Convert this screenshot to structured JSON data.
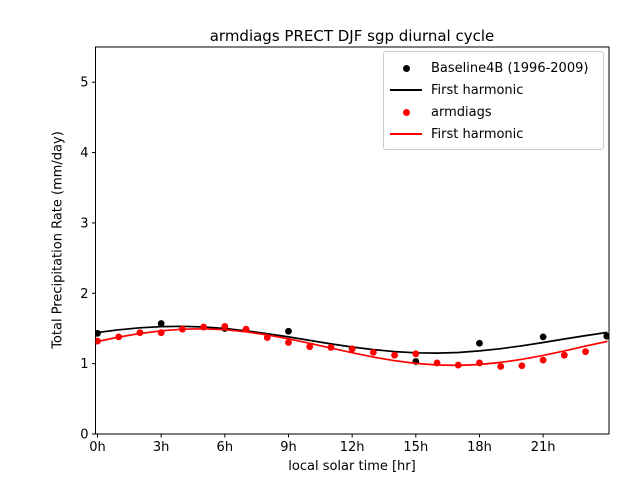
{
  "chart_data": {
    "type": "line",
    "title": "armdiags PRECT DJF sgp diurnal cycle",
    "xlabel": "local solar time [hr]",
    "ylabel": "Total Precipitation Rate (mm/day)",
    "xlim": [
      0,
      24
    ],
    "ylim": [
      0,
      5.5
    ],
    "grid": false,
    "x_ticks": [
      {
        "value": 0,
        "label": "0h"
      },
      {
        "value": 3,
        "label": "3h"
      },
      {
        "value": 6,
        "label": "6h"
      },
      {
        "value": 9,
        "label": "9h"
      },
      {
        "value": 12,
        "label": "12h"
      },
      {
        "value": 15,
        "label": "15h"
      },
      {
        "value": 18,
        "label": "18h"
      },
      {
        "value": 21,
        "label": "21h"
      }
    ],
    "y_ticks": [
      {
        "value": 0,
        "label": "0"
      },
      {
        "value": 1,
        "label": "1"
      },
      {
        "value": 2,
        "label": "2"
      },
      {
        "value": 3,
        "label": "3"
      },
      {
        "value": 4,
        "label": "4"
      },
      {
        "value": 5,
        "label": "5"
      }
    ],
    "colors": {
      "baseline": "#000000",
      "armdiags": "#ff0000"
    },
    "series": [
      {
        "name": "Baseline4B (1996-2009)",
        "type": "scatter",
        "color": "#000000",
        "x": [
          0,
          3,
          6,
          9,
          12,
          15,
          18,
          21,
          24
        ],
        "y": [
          1.43,
          1.57,
          1.5,
          1.46,
          1.21,
          1.03,
          1.29,
          1.38,
          1.39
        ]
      },
      {
        "name": "First harmonic",
        "type": "line",
        "color": "#000000",
        "x": [
          0,
          1,
          2,
          3,
          4,
          5,
          6,
          7,
          8,
          9,
          10,
          11,
          12,
          13,
          14,
          15,
          16,
          17,
          18,
          19,
          20,
          21,
          22,
          23,
          24
        ],
        "y": [
          1.443,
          1.481,
          1.509,
          1.526,
          1.53,
          1.521,
          1.499,
          1.467,
          1.426,
          1.38,
          1.33,
          1.281,
          1.237,
          1.199,
          1.171,
          1.154,
          1.15,
          1.159,
          1.181,
          1.213,
          1.254,
          1.301,
          1.35,
          1.399,
          1.443
        ]
      },
      {
        "name": "armdiags",
        "type": "scatter",
        "color": "#ff0000",
        "x": [
          0,
          1,
          2,
          3,
          4,
          5,
          6,
          7,
          8,
          9,
          10,
          11,
          12,
          13,
          14,
          15,
          16,
          17,
          18,
          19,
          20,
          21,
          22,
          23
        ],
        "y": [
          1.32,
          1.38,
          1.44,
          1.44,
          1.49,
          1.52,
          1.53,
          1.49,
          1.37,
          1.3,
          1.24,
          1.23,
          1.21,
          1.16,
          1.12,
          1.14,
          1.01,
          0.98,
          1.01,
          0.96,
          0.97,
          1.05,
          1.12,
          1.17
        ]
      },
      {
        "name": "First harmonic",
        "type": "line",
        "color": "#ff0000",
        "x": [
          0,
          1,
          2,
          3,
          4,
          5,
          6,
          7,
          8,
          9,
          10,
          11,
          12,
          13,
          14,
          15,
          16,
          17,
          18,
          19,
          20,
          21,
          22,
          23,
          24
        ],
        "y": [
          1.315,
          1.377,
          1.428,
          1.467,
          1.489,
          1.495,
          1.482,
          1.453,
          1.409,
          1.353,
          1.289,
          1.221,
          1.155,
          1.093,
          1.042,
          1.003,
          0.981,
          0.975,
          0.988,
          1.017,
          1.061,
          1.117,
          1.181,
          1.249,
          1.315
        ]
      }
    ],
    "legend": {
      "position": "upper right",
      "entries": [
        {
          "label": "Baseline4B (1996-2009)",
          "marker": "dot",
          "color": "#000000"
        },
        {
          "label": "First harmonic",
          "marker": "line",
          "color": "#000000"
        },
        {
          "label": "armdiags",
          "marker": "dot",
          "color": "#ff0000"
        },
        {
          "label": "First harmonic",
          "marker": "line",
          "color": "#ff0000"
        }
      ]
    }
  }
}
